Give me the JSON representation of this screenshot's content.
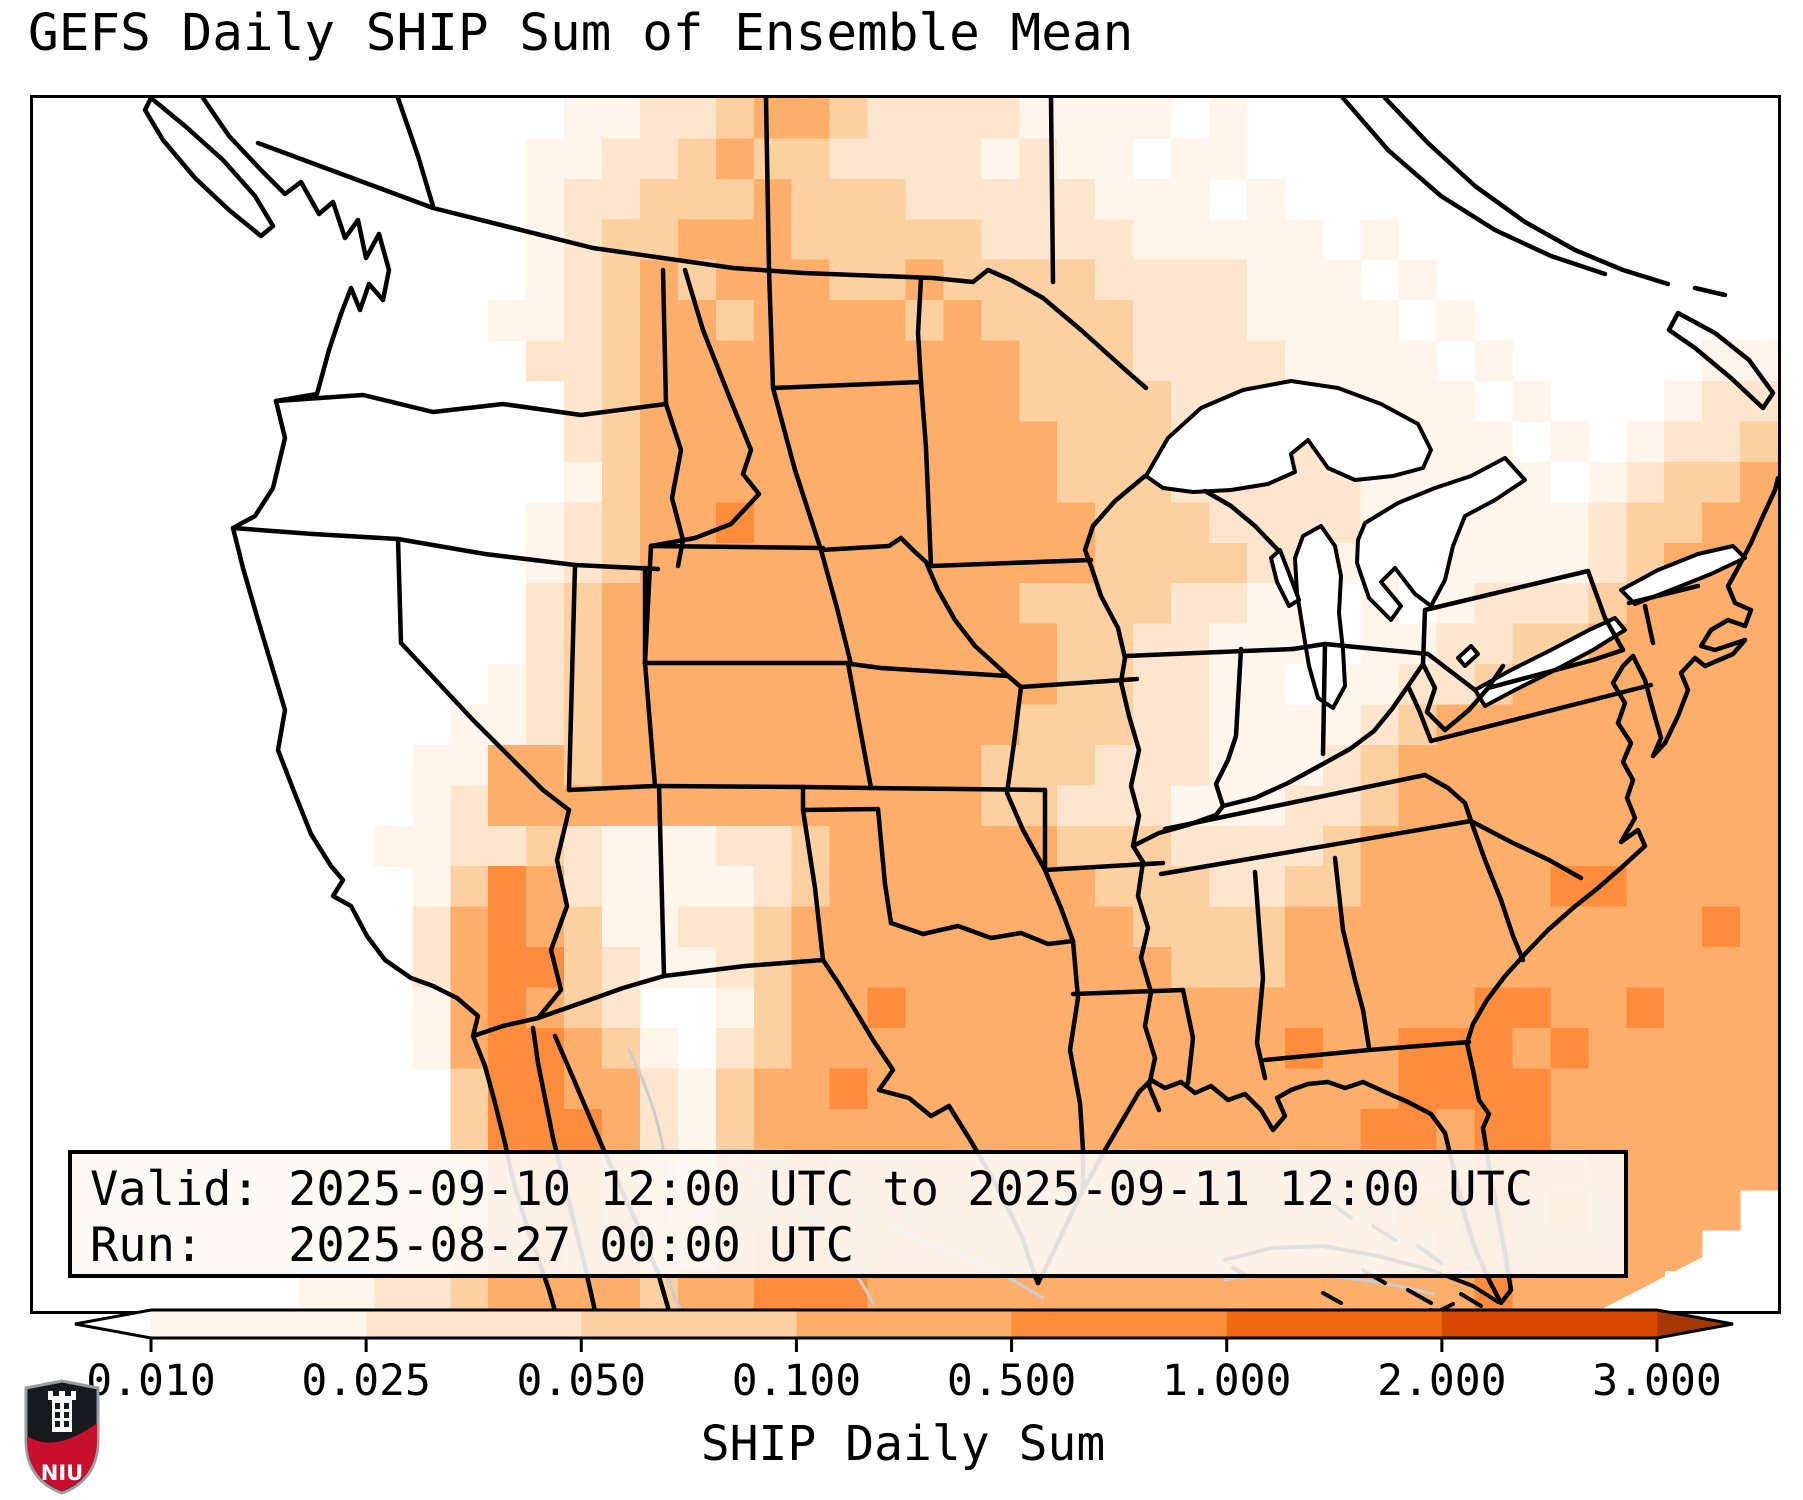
{
  "app": {
    "title": "GEFS Daily SHIP Sum of Ensemble Mean"
  },
  "info_box": {
    "line1": "Valid: 2025-09-10 12:00 UTC to 2025-09-11 12:00 UTC",
    "line2": "Run:   2025-08-27 00:00 UTC"
  },
  "colorbar": {
    "label": "SHIP Daily Sum",
    "tick_labels": [
      "0.010",
      "0.025",
      "0.050",
      "0.100",
      "0.500",
      "1.000",
      "2.000",
      "3.000"
    ],
    "segment_colors": [
      "#fff5eb",
      "#fee6ce",
      "#fdd0a2",
      "#fdae6b",
      "#fd8d3c",
      "#f16913",
      "#d94801"
    ],
    "under_color": "#ffffff",
    "over_color": "#a63603",
    "outline_color": "#000000"
  },
  "logo": {
    "label": "NIU",
    "shield_black": "#17191b",
    "shield_red": "#c8102e",
    "border": "#989da2"
  },
  "chart_data": {
    "type": "heatmap",
    "title": "GEFS Daily SHIP Sum of Ensemble Mean",
    "colorbar_label": "SHIP Daily Sum",
    "valid": "2025-09-10 12:00 UTC to 2025-09-11 12:00 UTC",
    "run": "2025-08-27 00:00 UTC",
    "levels": [
      0.01,
      0.025,
      0.05,
      0.1,
      0.5,
      1.0,
      2.0,
      3.0
    ],
    "palette": {
      "0": "#ffffff",
      "1": "#fff5eb",
      "2": "#fee6ce",
      "3": "#fdd0a2",
      "4": "#fdae6b",
      "5": "#fd8d3c",
      "6": "#f16913",
      "7": "#d94801",
      "8": "#a63603"
    },
    "grid_cols": 46,
    "grid_rows": 30,
    "grid": [
      "0000000000000011223443222211110100000000000000",
      "0000000000000112234332222121101100000000000000",
      "0000000000000122333433322222111010000000000000",
      "0000000000000123344433333222211111010000000000",
      "0000000000000123434443343333222211101000000000",
      "0000000000001123443444434333322211110100000000",
      "0000000000000223444444444433322221111010000011",
      "0000000000000023444444444433332221111101000122",
      "0000000000000023444444444443332222111110101223",
      "0000000000000013444444444443332222211111012334",
      "0000000000000123445444444444333222211111123344",
      "0000000000000123444444444444333322110111123444",
      "0000000000000234444444444433332211010122234444",
      "0000000000000234444444444443322111011223344444",
      "0000000000001234444444444443322110112234444444",
      "0000000000011234444444444433322111123444444444",
      "0000000000114434444444444333222111234444444444",
      "0000000000124444444444444332221112234444444444",
      "0000000001122321112234444443332222344444444444",
      "0000000000135421111234444444333223344444554444",
      "0000000000245431122344444444433334444444444454",
      "0000000000245532112344444444443334444444444444",
      "0000000000145432001344544444444444444455445444",
      "0000000000145543102344444444444445445554544444",
      "0000000000035544213445444444444444445555444444",
      "0000000000035554213444444444444444455455444444",
      "0000000000024554324454444444444444444455454444",
      "0000000000024554334444444444444444445554544440",
      "0000000001234544334554444444444444444554444400",
      "0000000112234444344555444444444444444454444000"
    ]
  }
}
